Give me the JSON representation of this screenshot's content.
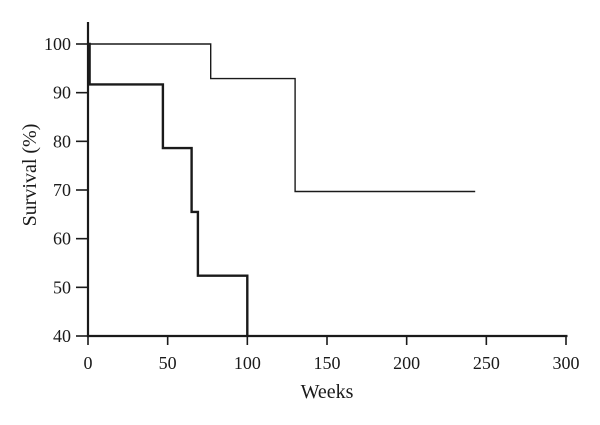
{
  "figure": {
    "background": "#ffffff",
    "line_color": "#1a1a1a"
  },
  "chart_data": {
    "type": "line",
    "subtype": "kaplan-meier-step-survival",
    "title": "",
    "xlabel": "Weeks",
    "ylabel": "Survival (%)",
    "xlim": [
      0,
      300
    ],
    "ylim": [
      40,
      100
    ],
    "xticks": [
      0,
      50,
      100,
      150,
      200,
      250,
      300
    ],
    "yticks": [
      40,
      50,
      60,
      70,
      80,
      90,
      100
    ],
    "grid": false,
    "legend_position": "none",
    "series": [
      {
        "name": "upper-survival-curve",
        "color": "#1a1a1a",
        "line_width": 1.4,
        "points": [
          [
            0,
            100
          ],
          [
            77,
            100
          ],
          [
            77,
            92.9
          ],
          [
            130,
            92.9
          ],
          [
            130,
            69.7
          ],
          [
            243,
            69.7
          ]
        ]
      },
      {
        "name": "lower-survival-curve",
        "color": "#1a1a1a",
        "line_width": 2.4,
        "points": [
          [
            0,
            100
          ],
          [
            1,
            100
          ],
          [
            1,
            91.7
          ],
          [
            47,
            91.7
          ],
          [
            47,
            78.6
          ],
          [
            65,
            78.6
          ],
          [
            65,
            65.5
          ],
          [
            69,
            65.5
          ],
          [
            69,
            52.4
          ],
          [
            100,
            52.4
          ],
          [
            100,
            40
          ]
        ]
      }
    ]
  }
}
